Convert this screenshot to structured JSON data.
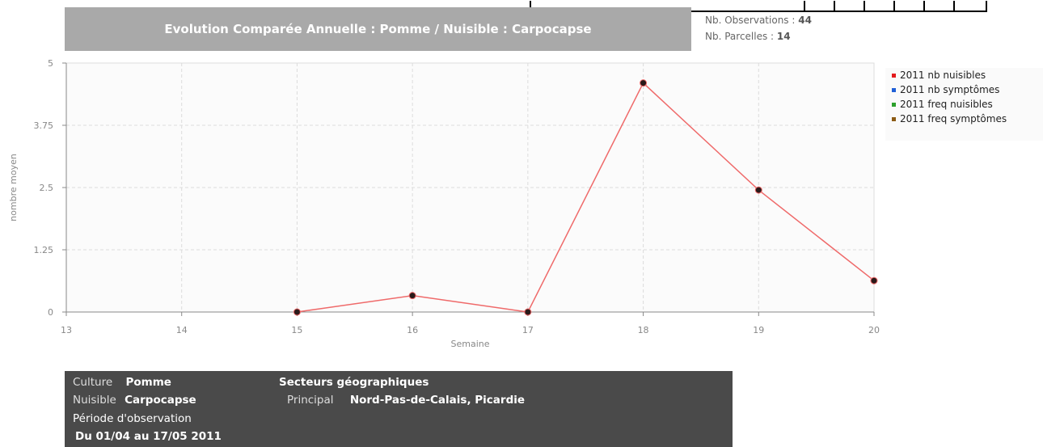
{
  "header": {
    "title": "Evolution Comparée Annuelle : Pomme / Nuisible : Carpocapse",
    "observations_label": "Nb. Observations :",
    "observations_value": "44",
    "parcelles_label": "Nb. Parcelles :",
    "parcelles_value": "14"
  },
  "chart_data": {
    "type": "line",
    "title": "",
    "xlabel": "Semaine",
    "ylabel": "nombre moyen",
    "x_ticks": [
      "13",
      "14",
      "15",
      "16",
      "17",
      "18",
      "19",
      "20"
    ],
    "y_ticks": [
      "0",
      "1.25",
      "2.5",
      "3.75",
      "5"
    ],
    "xlim": [
      13,
      20
    ],
    "ylim": [
      0,
      5
    ],
    "grid": true,
    "legend_position": "right",
    "series": [
      {
        "name": "2011 nb nuisibles",
        "color": "#e31a1c",
        "x": [
          15,
          16,
          17,
          18,
          19,
          20
        ],
        "y": [
          0,
          0.33,
          0,
          4.6,
          2.45,
          0.63
        ]
      },
      {
        "name": "2011 nb symptômes",
        "color": "#1f5fd6",
        "x": [],
        "y": []
      },
      {
        "name": "2011 freq nuisibles",
        "color": "#2ca02c",
        "x": [],
        "y": []
      },
      {
        "name": "2011 freq symptômes",
        "color": "#8b5a14",
        "x": [],
        "y": []
      }
    ]
  },
  "info": {
    "culture_label": "Culture",
    "culture_value": "Pomme",
    "nuisible_label": "Nuisible",
    "nuisible_value": "Carpocapse",
    "periode_label": "Période d'observation",
    "periode_value": "Du 01/04 au 17/05 2011",
    "secteurs_label": "Secteurs géographiques",
    "principal_label": "Principal",
    "principal_value": "Nord-Pas-de-Calais, Picardie"
  }
}
